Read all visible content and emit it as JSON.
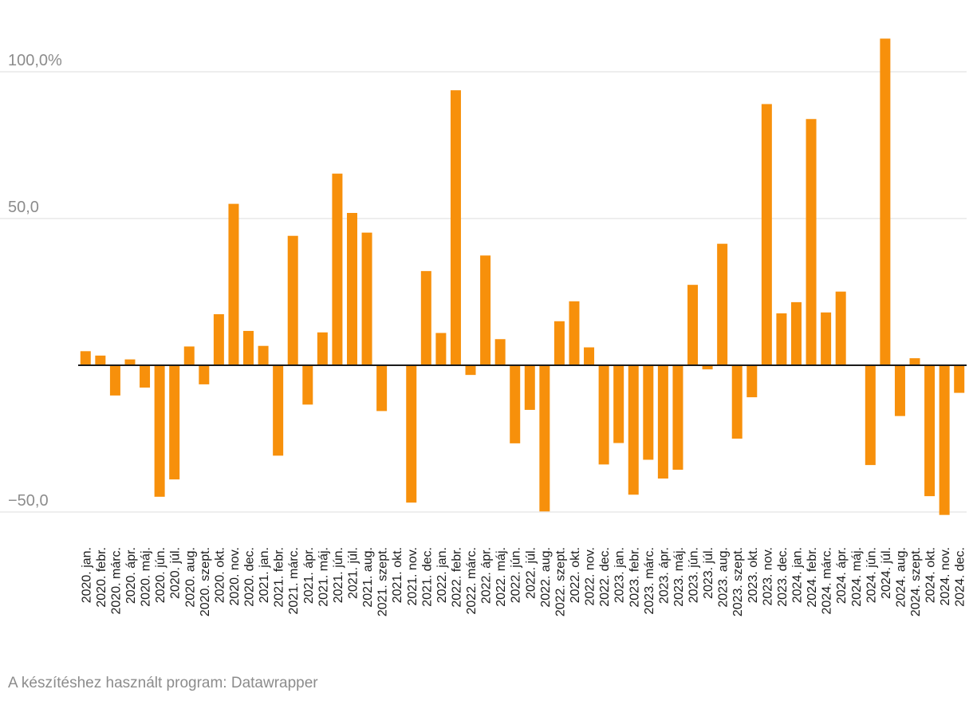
{
  "footer": {
    "credit": "A készítéshez használt program: Datawrapper"
  },
  "chart_data": {
    "type": "bar",
    "title": "",
    "xlabel": "",
    "ylabel": "",
    "ylim": [
      -58,
      113
    ],
    "yticks": [
      {
        "value": 100,
        "label": "100,0%"
      },
      {
        "value": 50,
        "label": "50,0"
      },
      {
        "value": -50,
        "label": "−50,0"
      }
    ],
    "grid": true,
    "bar_color": "#f7900b",
    "categories": [
      "2020. jan.",
      "2020. febr.",
      "2020. márc.",
      "2020. ápr.",
      "2020. máj.",
      "2020. jún.",
      "2020. júl.",
      "2020. aug.",
      "2020. szept.",
      "2020. okt.",
      "2020. nov.",
      "2020. dec.",
      "2021. jan.",
      "2021. febr.",
      "2021. márc.",
      "2021. ápr.",
      "2021. máj.",
      "2021. jún.",
      "2021. júl.",
      "2021. aug.",
      "2021. szept.",
      "2021. okt.",
      "2021. nov.",
      "2021. dec.",
      "2022. jan.",
      "2022. febr.",
      "2022. márc.",
      "2022. ápr.",
      "2022. máj.",
      "2022. jún.",
      "2022. júl.",
      "2022. aug.",
      "2022. szept.",
      "2022. okt.",
      "2022. nov.",
      "2022. dec.",
      "2023. jan.",
      "2023. febr.",
      "2023. márc.",
      "2023. ápr.",
      "2023. máj.",
      "2023. jún.",
      "2023. júl.",
      "2023. aug.",
      "2023. szept.",
      "2023. okt.",
      "2023. nov.",
      "2023. dec.",
      "2024. jan.",
      "2024. febr.",
      "2024. márc.",
      "2024. ápr.",
      "2024. máj.",
      "2024. jún.",
      "2024. júl.",
      "2024. aug.",
      "2024. szept.",
      "2024. okt.",
      "2024. nov.",
      "2024. dec."
    ],
    "values": [
      4.8,
      3.3,
      -10.3,
      2.0,
      -7.6,
      -44.8,
      -38.9,
      6.4,
      -6.5,
      17.4,
      55.0,
      11.7,
      6.6,
      -30.8,
      44.1,
      -13.4,
      11.2,
      65.3,
      51.9,
      45.2,
      -15.6,
      0.2,
      -46.8,
      32.1,
      11.0,
      93.7,
      -3.3,
      37.4,
      8.9,
      -26.6,
      -15.2,
      -49.8,
      15.0,
      21.8,
      6.1,
      -33.8,
      -26.5,
      -44.1,
      -32.2,
      -38.6,
      -35.6,
      27.4,
      -1.4,
      41.4,
      -25.0,
      -10.9,
      89.0,
      17.7,
      21.5,
      83.9,
      18.0,
      25.1,
      0.0,
      -34.0,
      111.3,
      -17.3,
      2.4,
      -44.6,
      -51.0,
      -9.4
    ]
  }
}
